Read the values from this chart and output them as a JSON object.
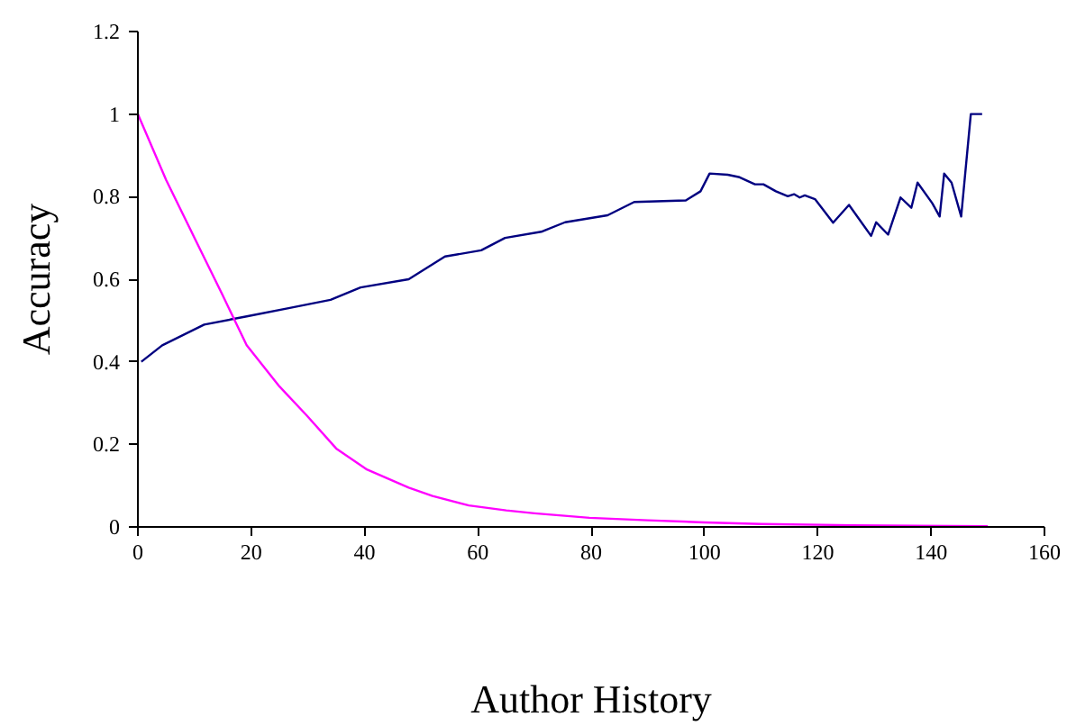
{
  "chart_data": {
    "type": "line",
    "xlabel": "Author History",
    "ylabel": "Accuracy",
    "xlim": [
      0,
      160
    ],
    "xticks": [
      0,
      20,
      40,
      60,
      80,
      100,
      120,
      140,
      160
    ],
    "ylim": [
      0,
      1.2
    ],
    "yticks": [
      0,
      0.2,
      0.4,
      0.6,
      0.8,
      1,
      1.2
    ],
    "marker": "none",
    "line_style": "solid",
    "series": [
      {
        "color": "#000080",
        "x": [
          0.6,
          4.3,
          11.7,
          19.2,
          26.6,
          34,
          39.3,
          47.8,
          54.2,
          60.6,
          64.8,
          71.2,
          75.4,
          82.9,
          87.6,
          96.7,
          99.3,
          100.9,
          104.1,
          106.2,
          108.9,
          110.4,
          112.6,
          114.7,
          115.8,
          116.8,
          117.7,
          119.5,
          122.7,
          125.5,
          129.4,
          130.3,
          132.4,
          134.6,
          136.5,
          137.6,
          140.2,
          141.5,
          142.3,
          143.6,
          145.3,
          147,
          149
        ],
        "values": [
          0.4,
          0.44,
          0.49,
          0.51,
          0.53,
          0.55,
          0.58,
          0.6,
          0.655,
          0.67,
          0.7,
          0.715,
          0.738,
          0.755,
          0.787,
          0.791,
          0.813,
          0.856,
          0.853,
          0.847,
          0.83,
          0.83,
          0.813,
          0.801,
          0.806,
          0.798,
          0.803,
          0.794,
          0.737,
          0.78,
          0.705,
          0.738,
          0.708,
          0.798,
          0.773,
          0.834,
          0.784,
          0.752,
          0.856,
          0.834,
          0.752,
          1,
          1
        ]
      },
      {
        "color": "#ff00ff",
        "x": [
          0,
          5,
          10,
          15,
          19.2,
          25,
          29.8,
          35,
          40.3,
          47.8,
          52,
          58.4,
          65,
          70,
          79.7,
          90,
          100,
          110,
          126,
          150
        ],
        "values": [
          1,
          0.84,
          0.7,
          0.56,
          0.44,
          0.34,
          0.27,
          0.19,
          0.14,
          0.095,
          0.075,
          0.052,
          0.04,
          0.033,
          0.022,
          0.016,
          0.011,
          0.007,
          0.004,
          0.002
        ]
      }
    ]
  }
}
